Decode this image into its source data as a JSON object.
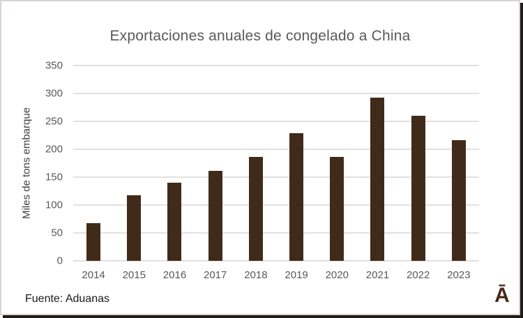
{
  "chart_data": {
    "type": "bar",
    "title": "Exportaciones anuales de congelado a China",
    "xlabel": "",
    "ylabel": "Miles de tons embarque",
    "categories": [
      "2014",
      "2015",
      "2016",
      "2017",
      "2018",
      "2019",
      "2020",
      "2021",
      "2022",
      "2023"
    ],
    "values": [
      67,
      118,
      140,
      161,
      186,
      229,
      186,
      293,
      260,
      216
    ],
    "ylim": [
      0,
      350
    ],
    "yticks": [
      0,
      50,
      100,
      150,
      200,
      250,
      300,
      350
    ],
    "grid": true,
    "legend_position": "none",
    "bar_color": "#402A19",
    "gridline_color": "#E4DFDE",
    "axis_text_color": "#595959"
  },
  "source": {
    "label": "Fuente: Aduanas"
  },
  "logo": {
    "glyph": "Ā",
    "color": "#472A1B"
  }
}
